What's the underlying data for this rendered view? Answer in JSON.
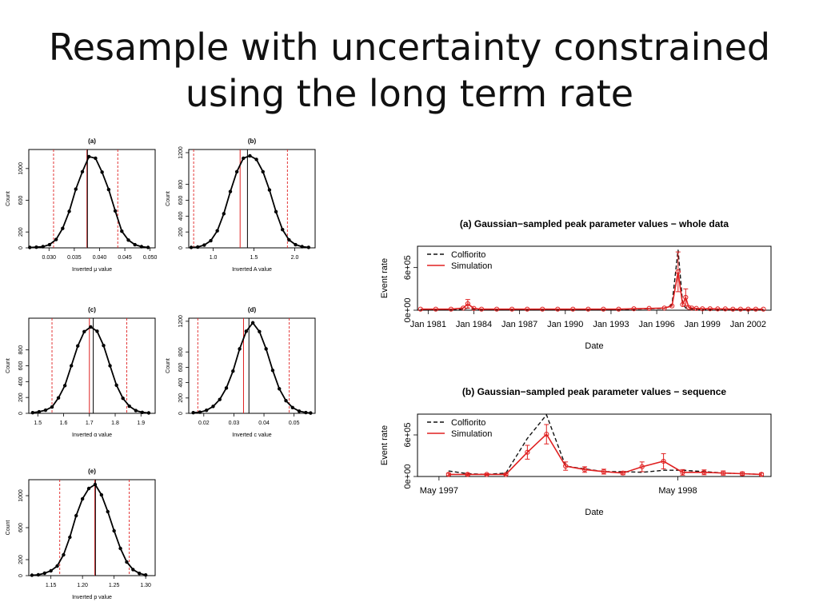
{
  "slide": {
    "title_line1": "Resample with uncertainty constrained",
    "title_line2": "using the long term rate"
  },
  "colors": {
    "observed": "#111111",
    "simulation": "#e02020",
    "bounds": "#e02020"
  },
  "chart_data": [
    {
      "id": "a",
      "type": "line",
      "title": "(a)",
      "xlabel": "Inverted μ value",
      "ylabel": "Count",
      "xlim": [
        0.026,
        0.051
      ],
      "ylim": [
        0,
        1240
      ],
      "xticks": [
        0.03,
        0.035,
        0.04,
        0.045,
        0.05
      ],
      "xticklabels": [
        "0.030",
        "0.035",
        "0.040",
        "0.045",
        "0.050"
      ],
      "yticks": [
        0,
        200,
        600,
        1000
      ],
      "yticklabels": [
        "0",
        "200",
        "600",
        "1000"
      ],
      "mean": 0.0375,
      "x": [
        0.0262,
        0.0275,
        0.0288,
        0.0301,
        0.0314,
        0.0327,
        0.034,
        0.0353,
        0.0366,
        0.0379,
        0.0392,
        0.0405,
        0.0418,
        0.0431,
        0.0444,
        0.0457,
        0.047,
        0.0483,
        0.0496
      ],
      "y": [
        5,
        8,
        15,
        40,
        105,
        245,
        460,
        740,
        960,
        1150,
        1130,
        955,
        735,
        465,
        210,
        98,
        40,
        15,
        5
      ],
      "vlines": [
        {
          "x": 0.0309,
          "color": "red",
          "dash": true
        },
        {
          "x": 0.0375,
          "color": "red",
          "dash": false
        },
        {
          "x": 0.0376,
          "color": "black",
          "dash": false
        },
        {
          "x": 0.0436,
          "color": "red",
          "dash": true
        }
      ]
    },
    {
      "id": "b",
      "type": "line",
      "title": "(b)",
      "xlabel": "Inverted A value",
      "ylabel": "Count",
      "xlim": [
        0.7,
        2.25
      ],
      "ylim": [
        0,
        1240
      ],
      "xticks": [
        1.0,
        1.5,
        2.0
      ],
      "xticklabels": [
        "1.0",
        "1.5",
        "2.0"
      ],
      "yticks": [
        0,
        200,
        400,
        600,
        800,
        1200
      ],
      "yticklabels": [
        "0",
        "200",
        "400",
        "600",
        "800",
        "1200"
      ],
      "mean": 1.42,
      "x": [
        0.73,
        0.81,
        0.89,
        0.97,
        1.05,
        1.13,
        1.21,
        1.29,
        1.37,
        1.45,
        1.53,
        1.61,
        1.69,
        1.77,
        1.85,
        1.93,
        2.01,
        2.09,
        2.17
      ],
      "y": [
        5,
        10,
        35,
        90,
        215,
        430,
        710,
        960,
        1130,
        1160,
        1115,
        960,
        730,
        455,
        230,
        100,
        40,
        15,
        6
      ],
      "vlines": [
        {
          "x": 0.76,
          "color": "red",
          "dash": true
        },
        {
          "x": 1.33,
          "color": "red",
          "dash": false
        },
        {
          "x": 1.42,
          "color": "black",
          "dash": false
        },
        {
          "x": 1.91,
          "color": "red",
          "dash": true
        }
      ]
    },
    {
      "id": "c",
      "type": "line",
      "title": "(c)",
      "xlabel": "Inverted α value",
      "ylabel": "Count",
      "xlim": [
        1.465,
        1.955
      ],
      "ylim": [
        0,
        1200
      ],
      "xticks": [
        1.5,
        1.6,
        1.7,
        1.8,
        1.9
      ],
      "xticklabels": [
        "1.5",
        "1.6",
        "1.7",
        "1.8",
        "1.9"
      ],
      "yticks": [
        0,
        200,
        400,
        600,
        800
      ],
      "yticklabels": [
        "0",
        "200",
        "400",
        "600",
        "800"
      ],
      "mean": 1.715,
      "x": [
        1.48,
        1.505,
        1.53,
        1.555,
        1.58,
        1.605,
        1.63,
        1.655,
        1.68,
        1.705,
        1.73,
        1.755,
        1.78,
        1.805,
        1.83,
        1.855,
        1.88,
        1.905,
        1.93
      ],
      "y": [
        8,
        20,
        40,
        80,
        195,
        350,
        600,
        850,
        1030,
        1090,
        1035,
        855,
        600,
        355,
        190,
        90,
        35,
        12,
        5
      ],
      "vlines": [
        {
          "x": 1.555,
          "color": "red",
          "dash": true
        },
        {
          "x": 1.7,
          "color": "red",
          "dash": false
        },
        {
          "x": 1.715,
          "color": "black",
          "dash": false
        },
        {
          "x": 1.845,
          "color": "red",
          "dash": true
        }
      ]
    },
    {
      "id": "d",
      "type": "line",
      "title": "(d)",
      "xlabel": "Inverted c value",
      "ylabel": "Count",
      "xlim": [
        0.015,
        0.057
      ],
      "ylim": [
        0,
        1240
      ],
      "xticks": [
        0.02,
        0.03,
        0.04,
        0.05
      ],
      "xticklabels": [
        "0.02",
        "0.03",
        "0.04",
        "0.05"
      ],
      "yticks": [
        0,
        200,
        400,
        600,
        800,
        1200
      ],
      "yticklabels": [
        "0",
        "200",
        "400",
        "600",
        "800",
        "1200"
      ],
      "mean": 0.035,
      "x": [
        0.0165,
        0.0187,
        0.0209,
        0.0231,
        0.0253,
        0.0275,
        0.0297,
        0.0319,
        0.0341,
        0.0363,
        0.0385,
        0.0407,
        0.0429,
        0.0451,
        0.0473,
        0.0495,
        0.0517,
        0.0539,
        0.0555
      ],
      "y": [
        8,
        15,
        40,
        90,
        180,
        330,
        550,
        840,
        1070,
        1180,
        1065,
        840,
        560,
        320,
        165,
        75,
        28,
        10,
        4
      ],
      "vlines": [
        {
          "x": 0.018,
          "color": "red",
          "dash": true
        },
        {
          "x": 0.0332,
          "color": "red",
          "dash": false
        },
        {
          "x": 0.035,
          "color": "black",
          "dash": false
        },
        {
          "x": 0.0484,
          "color": "red",
          "dash": true
        }
      ]
    },
    {
      "id": "e",
      "type": "line",
      "title": "(e)",
      "xlabel": "Inverted p value",
      "ylabel": "Count",
      "xlim": [
        1.115,
        1.315
      ],
      "ylim": [
        0,
        1200
      ],
      "xticks": [
        1.15,
        1.2,
        1.25,
        1.3
      ],
      "xticklabels": [
        "1.15",
        "1.20",
        "1.25",
        "1.30"
      ],
      "yticks": [
        0,
        200,
        600,
        1000
      ],
      "yticklabels": [
        "0",
        "200",
        "600",
        "1000"
      ],
      "mean": 1.22,
      "x": [
        1.12,
        1.13,
        1.14,
        1.15,
        1.16,
        1.17,
        1.18,
        1.19,
        1.2,
        1.21,
        1.22,
        1.23,
        1.24,
        1.25,
        1.26,
        1.27,
        1.28,
        1.29,
        1.3
      ],
      "y": [
        5,
        10,
        30,
        60,
        120,
        260,
        480,
        750,
        960,
        1090,
        1140,
        1010,
        800,
        560,
        340,
        170,
        75,
        28,
        8
      ],
      "vlines": [
        {
          "x": 1.164,
          "color": "red",
          "dash": true
        },
        {
          "x": 1.2195,
          "color": "red",
          "dash": false
        },
        {
          "x": 1.2205,
          "color": "black",
          "dash": false
        },
        {
          "x": 1.274,
          "color": "red",
          "dash": true
        }
      ]
    },
    {
      "id": "ts_a",
      "type": "line",
      "title": "(a) Gaussian−sampled peak parameter values − whole data",
      "xlabel": "Date",
      "ylabel": "Event rate",
      "xlim": [
        1980.3,
        2003.5
      ],
      "ylim": [
        0,
        900000
      ],
      "xticks": [
        1981,
        1984,
        1987,
        1990,
        1993,
        1996,
        1999,
        2002
      ],
      "xticklabels": [
        "Jan 1981",
        "Jan 1984",
        "Jan 1987",
        "Jan 1990",
        "Jan 1993",
        "Jan 1996",
        "Jan 1999",
        "Jan 2002"
      ],
      "yticks": [
        0,
        600000
      ],
      "yticklabels": [
        "0e+00",
        "6e+05"
      ],
      "legend": {
        "position": "top-left",
        "entries": [
          "Colfiorito",
          "Simulation"
        ]
      },
      "x": [
        1980.5,
        1981.5,
        1982.5,
        1983.3,
        1983.6,
        1984.0,
        1984.5,
        1985.5,
        1986.5,
        1987.5,
        1988.5,
        1989.5,
        1990.5,
        1991.5,
        1992.5,
        1993.5,
        1994.5,
        1995.5,
        1996.5,
        1997.0,
        1997.4,
        1997.7,
        1997.9,
        1998.1,
        1998.3,
        1998.6,
        1999.0,
        1999.5,
        2000.0,
        2000.5,
        2001.0,
        2001.5,
        2002.0,
        2002.5,
        2003.0
      ],
      "series": [
        {
          "name": "Colfiorito",
          "style": "dashed",
          "values": [
            10000,
            10000,
            10000,
            15000,
            30000,
            15000,
            10000,
            10000,
            10000,
            10000,
            10000,
            10000,
            10000,
            10000,
            10000,
            10000,
            15000,
            20000,
            25000,
            80000,
            850000,
            100000,
            30000,
            20000,
            15000,
            15000,
            12000,
            12000,
            10000,
            10000,
            10000,
            10000,
            10000,
            10000,
            10000
          ]
        },
        {
          "name": "Simulation",
          "style": "solid-points",
          "values": [
            15000,
            15000,
            15000,
            30000,
            90000,
            25000,
            15000,
            15000,
            15000,
            15000,
            15000,
            15000,
            15000,
            15000,
            15000,
            15000,
            20000,
            25000,
            30000,
            60000,
            540000,
            80000,
            180000,
            40000,
            30000,
            25000,
            20000,
            20000,
            18000,
            18000,
            15000,
            15000,
            15000,
            15000,
            15000
          ],
          "err": [
            0,
            0,
            0,
            0,
            60000,
            0,
            0,
            0,
            0,
            0,
            0,
            0,
            0,
            0,
            0,
            0,
            0,
            0,
            0,
            0,
            280000,
            0,
            120000,
            0,
            0,
            0,
            0,
            0,
            0,
            0,
            0,
            0,
            0,
            0,
            0
          ]
        }
      ]
    },
    {
      "id": "ts_b",
      "type": "line",
      "title": "(b) Gaussian−sampled peak parameter values − sequence",
      "xlabel": "Date",
      "ylabel": "Event rate",
      "xlim": [
        1997.24,
        1998.72
      ],
      "ylim": [
        0,
        900000
      ],
      "xticks": [
        1997.33,
        1998.33
      ],
      "xticklabels": [
        "May 1997",
        "May 1998"
      ],
      "yticks": [
        0,
        600000
      ],
      "yticklabels": [
        "0e+00",
        "6e+05"
      ],
      "legend": {
        "position": "top-left",
        "entries": [
          "Colfiorito",
          "Simulation"
        ]
      },
      "x": [
        1997.37,
        1997.45,
        1997.53,
        1997.61,
        1997.7,
        1997.78,
        1997.86,
        1997.94,
        1998.02,
        1998.1,
        1998.18,
        1998.27,
        1998.35,
        1998.44,
        1998.52,
        1998.6,
        1998.68
      ],
      "series": [
        {
          "name": "Colfiorito",
          "style": "dashed",
          "values": [
            80000,
            40000,
            30000,
            50000,
            550000,
            890000,
            150000,
            110000,
            70000,
            70000,
            60000,
            90000,
            90000,
            70000,
            50000,
            40000,
            30000
          ]
        },
        {
          "name": "Simulation",
          "style": "solid-points",
          "values": [
            30000,
            30000,
            30000,
            30000,
            350000,
            610000,
            150000,
            100000,
            70000,
            50000,
            140000,
            220000,
            60000,
            60000,
            50000,
            40000,
            30000
          ],
          "err": [
            18000,
            18000,
            12000,
            12000,
            100000,
            140000,
            60000,
            40000,
            35000,
            25000,
            70000,
            110000,
            40000,
            35000,
            30000,
            25000,
            20000
          ]
        }
      ]
    }
  ]
}
